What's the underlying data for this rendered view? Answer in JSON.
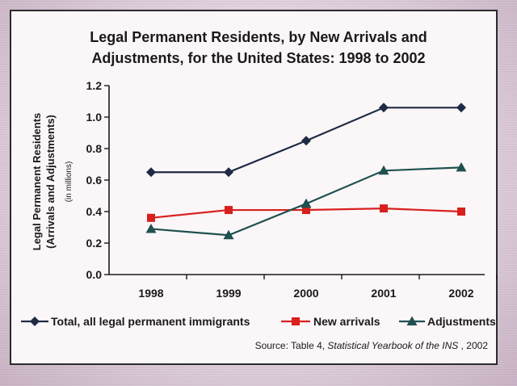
{
  "chart_data": {
    "type": "line",
    "title_line1": "Legal Permanent Residents, by New Arrivals and",
    "title_line2": "Adjustments, for the United States: 1998 to 2002",
    "ylabel_line1": "Legal Permanent Residents",
    "ylabel_line2": "(Arrivals and Adjustments)",
    "ylabel_unit": "(in millions)",
    "categories": [
      "1998",
      "1999",
      "2000",
      "2001",
      "2002"
    ],
    "ylim": [
      0,
      1.2
    ],
    "yticks": [
      "0.0",
      "0.2",
      "0.4",
      "0.6",
      "0.8",
      "1.0",
      "1.2"
    ],
    "series": [
      {
        "name": "Total, all legal permanent immigrants",
        "values": [
          0.65,
          0.65,
          0.85,
          1.06,
          1.06
        ],
        "color": "#1f2b44",
        "marker": "diamond"
      },
      {
        "name": "New arrivals",
        "values": [
          0.36,
          0.41,
          0.41,
          0.42,
          0.4
        ],
        "color": "#d8201e",
        "marker": "square"
      },
      {
        "name": "Adjustments",
        "values": [
          0.29,
          0.25,
          0.45,
          0.66,
          0.68
        ],
        "color": "#1f5050",
        "marker": "triangle"
      }
    ],
    "grid": false,
    "legend_position": "bottom",
    "source_prefix": "Source: Table 4, ",
    "source_italic": "Statistical Yearbook of the INS",
    "source_suffix": " , 2002"
  }
}
